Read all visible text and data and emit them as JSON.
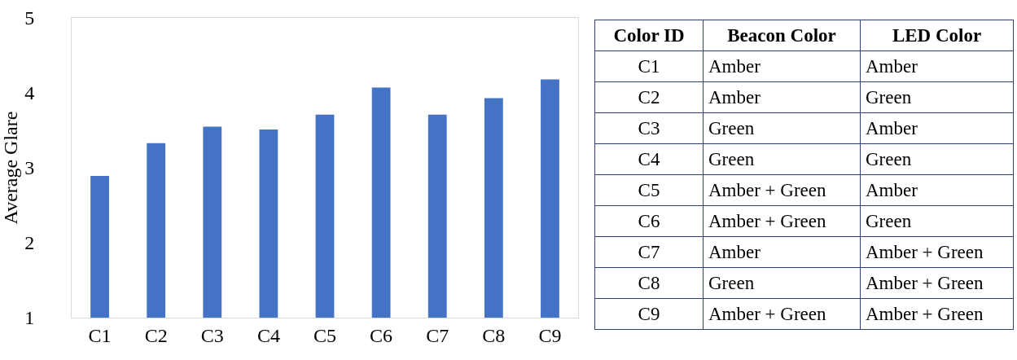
{
  "chart_data": [
    {
      "type": "bar",
      "ylabel": "Average Glare",
      "categories": [
        "C1",
        "C2",
        "C3",
        "C4",
        "C5",
        "C6",
        "C7",
        "C8",
        "C9"
      ],
      "values": [
        2.89,
        3.33,
        3.55,
        3.51,
        3.71,
        4.07,
        3.71,
        3.93,
        4.18
      ],
      "color": "#4472c4",
      "ylim": [
        1,
        5
      ],
      "yticks": [
        1,
        2,
        3,
        4,
        5
      ],
      "grid": false
    },
    {
      "type": "other",
      "categories": [
        "Color ID",
        "Beacon Color",
        "LED Color"
      ],
      "cell_labels": [
        [
          "C1",
          "Amber",
          "Amber"
        ],
        [
          "C2",
          "Amber",
          "Green"
        ],
        [
          "C3",
          "Green",
          "Amber"
        ],
        [
          "C4",
          "Green",
          "Green"
        ],
        [
          "C5",
          "Amber + Green",
          "Amber"
        ],
        [
          "C6",
          "Amber + Green",
          "Green"
        ],
        [
          "C7",
          "Amber",
          "Amber + Green"
        ],
        [
          "C8",
          "Green",
          "Amber + Green"
        ],
        [
          "C9",
          "Amber + Green",
          "Amber + Green"
        ]
      ]
    }
  ]
}
